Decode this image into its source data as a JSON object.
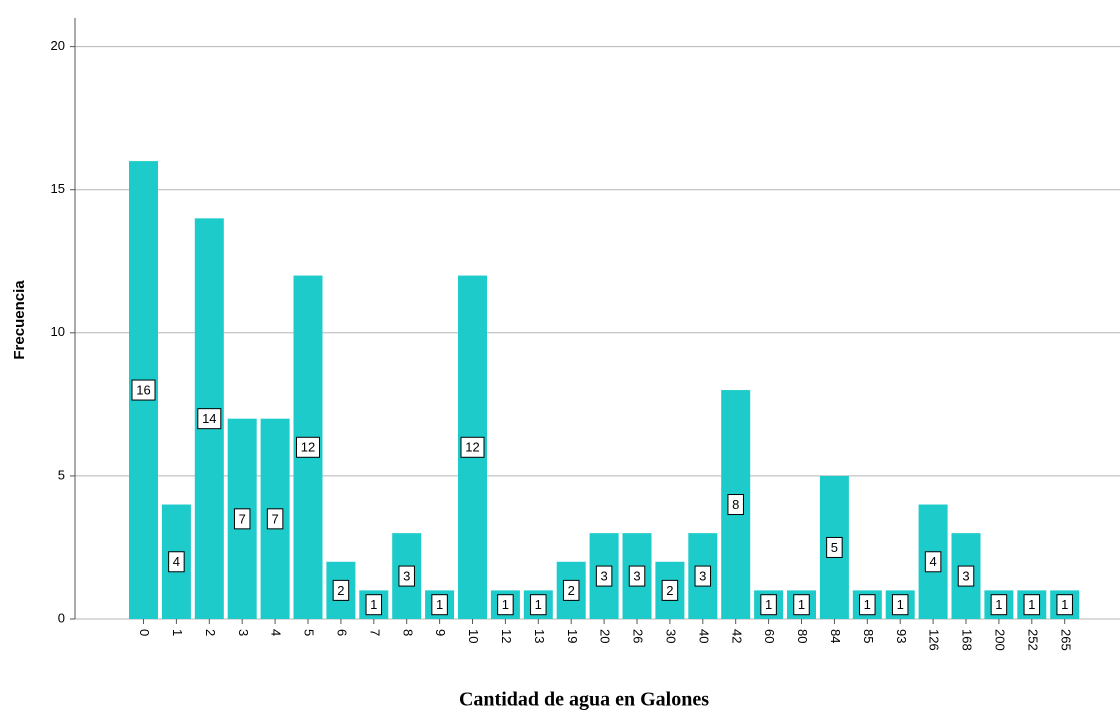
{
  "chart_data": {
    "type": "bar",
    "xlabel": "Cantidad de agua en Galones",
    "ylabel": "Frecuencia",
    "categories": [
      "0",
      "1",
      "2",
      "3",
      "4",
      "5",
      "6",
      "7",
      "8",
      "9",
      "10",
      "12",
      "13",
      "19",
      "20",
      "26",
      "30",
      "40",
      "42",
      "60",
      "80",
      "84",
      "85",
      "93",
      "126",
      "168",
      "200",
      "252",
      "265"
    ],
    "values": [
      16,
      4,
      14,
      7,
      7,
      12,
      2,
      1,
      3,
      1,
      12,
      1,
      1,
      2,
      3,
      3,
      2,
      3,
      8,
      1,
      1,
      5,
      1,
      1,
      4,
      3,
      1,
      1,
      1
    ],
    "color": "#1ecbcb",
    "ylim": [
      0,
      21
    ],
    "yticks": [
      0,
      5,
      10,
      15,
      20
    ],
    "grid": true,
    "value_labels_shown": true
  }
}
